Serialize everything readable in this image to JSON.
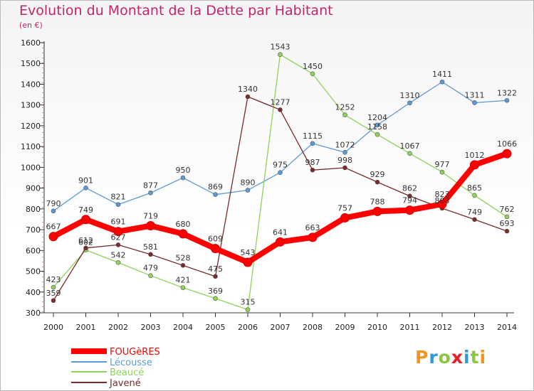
{
  "chart_data": {
    "type": "line",
    "title": "Evolution du Montant de la Dette par Habitant",
    "subtitle": "(en €)",
    "x": [
      "2000",
      "2001",
      "2002",
      "2003",
      "2004",
      "2005",
      "2006",
      "2007",
      "2008",
      "2009",
      "2010",
      "2011",
      "2012",
      "2013",
      "2014"
    ],
    "ylim": [
      300,
      1600
    ],
    "yticks": [
      300,
      400,
      500,
      600,
      700,
      800,
      900,
      1000,
      1100,
      1200,
      1300,
      1400,
      1500,
      1600
    ],
    "grid": false,
    "legend_position": "bottom-left",
    "series": [
      {
        "name": "FOUGèRES",
        "color": "#ff0000",
        "values": [
          667,
          749,
          691,
          719,
          680,
          609,
          543,
          641,
          663,
          757,
          788,
          794,
          823,
          1012,
          1066
        ]
      },
      {
        "name": "Lécousse",
        "color": "#5b9bd5",
        "values": [
          790,
          901,
          821,
          877,
          950,
          869,
          890,
          975,
          1115,
          1072,
          1204,
          1310,
          1411,
          1311,
          1322
        ]
      },
      {
        "name": "Beaucé",
        "color": "#8fd35a",
        "values": [
          423,
          602,
          542,
          479,
          421,
          369,
          315,
          1543,
          1450,
          1252,
          1158,
          1067,
          977,
          865,
          762
        ]
      },
      {
        "name": "Javené",
        "color": "#7a2a2a",
        "values": [
          359,
          612,
          627,
          581,
          528,
          475,
          1340,
          1277,
          987,
          998,
          929,
          862,
          803,
          749,
          693
        ]
      }
    ]
  },
  "logo": {
    "text": "Proxiti"
  }
}
